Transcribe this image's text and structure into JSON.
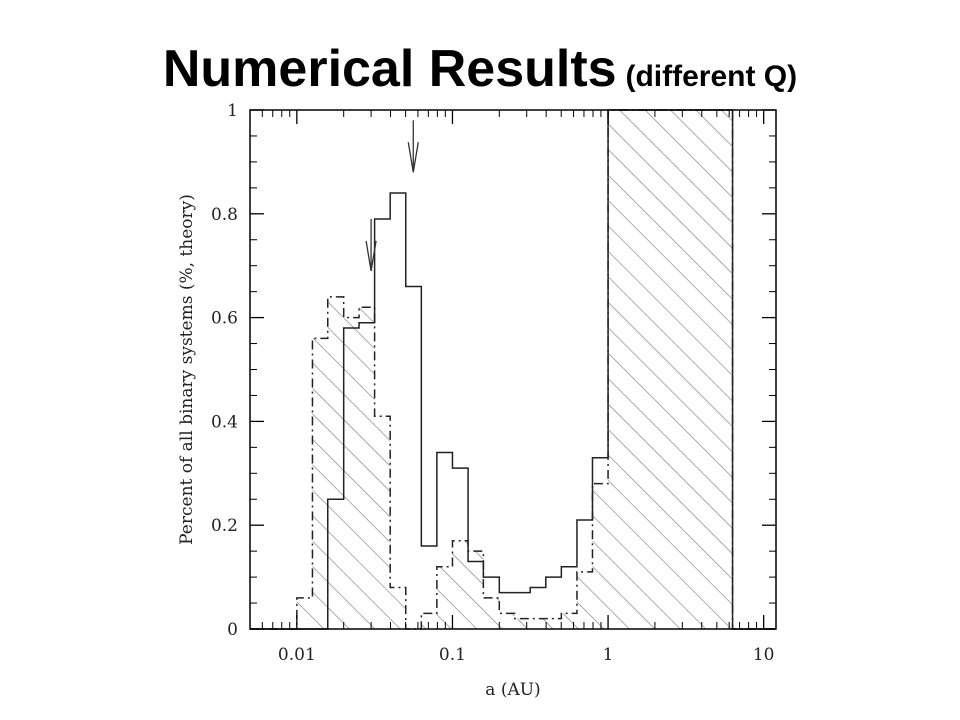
{
  "slide": {
    "title": "Numerical Results",
    "subtitle": "(different Q)"
  },
  "chart_data": {
    "type": "histogram",
    "x_scale": "log",
    "xlim": [
      0.005,
      12
    ],
    "ylim": [
      0,
      1
    ],
    "xlabel": "a (AU)",
    "ylabel": "Percent of all binary systems (%, theory)",
    "x_ticks": [
      {
        "value": 0.01,
        "label": "0.01"
      },
      {
        "value": 0.1,
        "label": "0.1"
      },
      {
        "value": 1,
        "label": "1"
      },
      {
        "value": 10,
        "label": "10"
      }
    ],
    "y_ticks": [
      {
        "value": 0,
        "label": "0"
      },
      {
        "value": 0.2,
        "label": "0.2"
      },
      {
        "value": 0.4,
        "label": "0.4"
      },
      {
        "value": 0.6,
        "label": "0.6"
      },
      {
        "value": 0.8,
        "label": "0.8"
      },
      {
        "value": 1,
        "label": "1"
      }
    ],
    "grid": false,
    "bin_edges": [
      0.01,
      0.0126,
      0.0158,
      0.02,
      0.0251,
      0.0316,
      0.0398,
      0.0501,
      0.0631,
      0.0794,
      0.1,
      0.126,
      0.158,
      0.2,
      0.251,
      0.316,
      0.398,
      0.501,
      0.631,
      0.794,
      1.0,
      1.26,
      1.58,
      2.0,
      2.51,
      3.16,
      3.98,
      5.01,
      6.31
    ],
    "series": [
      {
        "style": "solid",
        "values": [
          0.0,
          0.0,
          0.25,
          0.58,
          0.59,
          0.79,
          0.84,
          0.66,
          0.16,
          0.34,
          0.31,
          0.13,
          0.1,
          0.07,
          0.07,
          0.08,
          0.1,
          0.12,
          0.21,
          0.33,
          1.0,
          1.0,
          1.0,
          1.0,
          1.0,
          1.0,
          1.0,
          1.0
        ]
      },
      {
        "style": "dash-dot-hatched",
        "values": [
          0.06,
          0.56,
          0.64,
          0.6,
          0.62,
          0.41,
          0.08,
          0.0,
          0.03,
          0.12,
          0.17,
          0.15,
          0.06,
          0.03,
          0.02,
          0.02,
          0.02,
          0.03,
          0.11,
          0.28,
          1.0,
          1.0,
          1.0,
          1.0,
          1.0,
          1.0,
          1.0,
          1.0
        ]
      }
    ],
    "arrows": [
      {
        "x": 0.056,
        "y_tip": 0.88
      },
      {
        "x": 0.03,
        "y_tip": 0.69
      }
    ]
  }
}
